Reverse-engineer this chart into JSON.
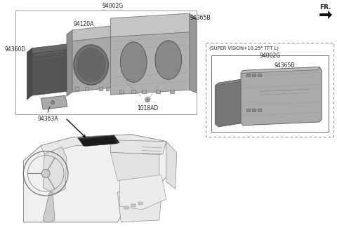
{
  "bg_color": "#ffffff",
  "line_color": "#aaaaaa",
  "dark_color": "#222222",
  "labels": {
    "94002G_top": "94002G",
    "94365B": "94365B",
    "94120A": "94120A",
    "94360D": "94360D",
    "94363A": "94363A",
    "1018AD": "1018AD",
    "super_vision": "(SUPER VISION+10.25\" TFT L)",
    "94002G_box": "94002G",
    "94365B_box": "94365B",
    "FR": "FR."
  },
  "colors": {
    "back_pcb": "#aaaaaa",
    "mid_bezel": "#999999",
    "front_lens": "#555555",
    "front_lens_face": "#444444",
    "bracket": "#999999",
    "box_edge": "#777777",
    "detail_line": "#888888",
    "screw_fill": "#bbbbbb",
    "sv_front": "#888888",
    "sv_back": "#aaaaaa",
    "dash_outline": "#888888",
    "dash_fill": "#f5f5f5",
    "cluster_fill": "#333333",
    "arrow_color": "#111111"
  }
}
